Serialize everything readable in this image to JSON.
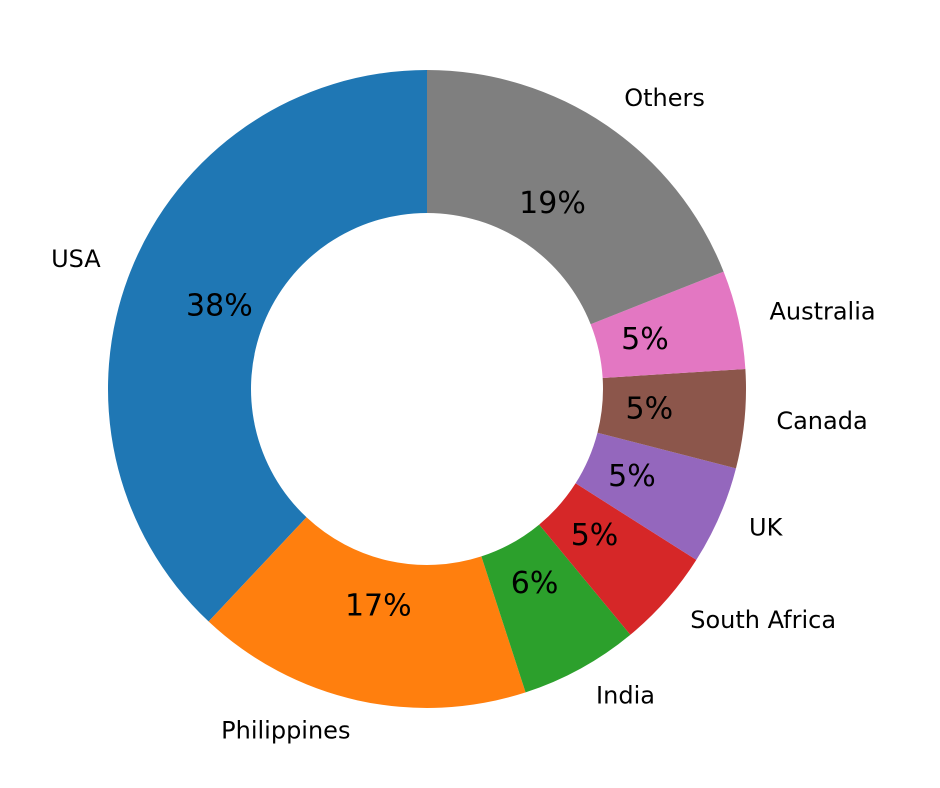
{
  "chart_data": {
    "type": "pie",
    "categories": [
      "USA",
      "Philippines",
      "India",
      "South Africa",
      "UK",
      "Canada",
      "Australia",
      "Others"
    ],
    "values": [
      38,
      17,
      6,
      5,
      5,
      5,
      5,
      19
    ],
    "value_labels": [
      "38%",
      "17%",
      "6%",
      "5%",
      "5%",
      "5%",
      "5%",
      "19%"
    ],
    "colors": [
      "#1f77b4",
      "#ff7f0e",
      "#2ca02c",
      "#d62728",
      "#9467bd",
      "#8c564b",
      "#e377c2",
      "#7f7f7f"
    ],
    "donut": true
  }
}
